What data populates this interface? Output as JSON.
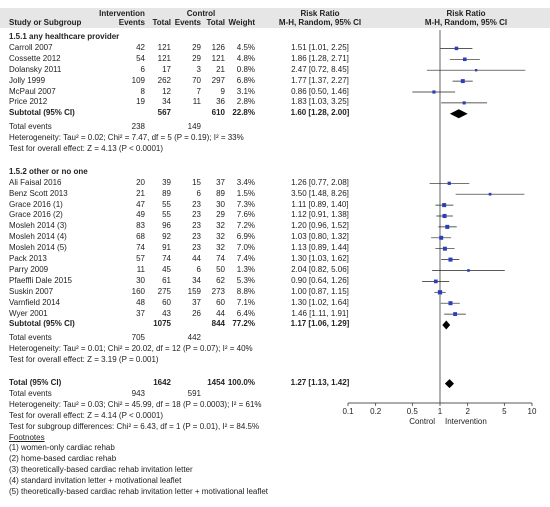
{
  "header": {
    "group_intervention": "Intervention",
    "group_control": "Control",
    "col_risk_ratio": "Risk Ratio",
    "col_study": "Study or Subgroup",
    "col_events1": "Events",
    "col_total1": "Total",
    "col_events2": "Events",
    "col_total2": "Total",
    "col_weight": "Weight",
    "col_method": "M-H, Random, 95% CI",
    "plot_title": "Risk Ratio",
    "plot_method": "M-H, Random, 95% CI"
  },
  "subgroups": [
    {
      "title": "1.5.1 any healthcare provider",
      "studies": [
        {
          "name": "Carroll 2007",
          "e1": "42",
          "n1": "121",
          "e2": "29",
          "n2": "126",
          "w": "4.5%",
          "ci": "1.51 [1.01, 2.25]"
        },
        {
          "name": "Cossette 2012",
          "e1": "54",
          "n1": "121",
          "e2": "29",
          "n2": "121",
          "w": "4.8%",
          "ci": "1.86 [1.28, 2.71]"
        },
        {
          "name": "Dolansky 2011",
          "e1": "6",
          "n1": "17",
          "e2": "3",
          "n2": "21",
          "w": "0.8%",
          "ci": "2.47 [0.72, 8.45]"
        },
        {
          "name": "Jolly 1999",
          "e1": "109",
          "n1": "262",
          "e2": "70",
          "n2": "297",
          "w": "6.8%",
          "ci": "1.77 [1.37, 2.27]"
        },
        {
          "name": "McPaul 2007",
          "e1": "8",
          "n1": "12",
          "e2": "7",
          "n2": "9",
          "w": "3.1%",
          "ci": "0.86 [0.50, 1.46]"
        },
        {
          "name": "Price 2012",
          "e1": "19",
          "n1": "34",
          "e2": "11",
          "n2": "36",
          "w": "2.8%",
          "ci": "1.83 [1.03, 3.25]"
        }
      ],
      "subtotal": {
        "label": "Subtotal (95% CI)",
        "n1": "567",
        "n2": "610",
        "w": "22.8%",
        "ci": "1.60 [1.28, 2.00]"
      },
      "total_events": {
        "label": "Total events",
        "e1": "238",
        "e2": "149"
      },
      "heterogeneity": "Heterogeneity: Tau² = 0.02; Chi² = 7.47, df = 5 (P = 0.19); I² = 33%",
      "overall": "Test for overall effect: Z = 4.13 (P < 0.0001)"
    },
    {
      "title": "1.5.2 other or no one",
      "studies": [
        {
          "name": "Ali Faisal 2016",
          "e1": "20",
          "n1": "39",
          "e2": "15",
          "n2": "37",
          "w": "3.4%",
          "ci": "1.26 [0.77, 2.08]"
        },
        {
          "name": "Benz Scott 2013",
          "e1": "21",
          "n1": "89",
          "e2": "6",
          "n2": "89",
          "w": "1.5%",
          "ci": "3.50 [1.48, 8.26]"
        },
        {
          "name": "Grace 2016 (1)",
          "e1": "47",
          "n1": "55",
          "e2": "23",
          "n2": "30",
          "w": "7.3%",
          "ci": "1.11 [0.89, 1.40]"
        },
        {
          "name": "Grace 2016 (2)",
          "e1": "49",
          "n1": "55",
          "e2": "23",
          "n2": "29",
          "w": "7.6%",
          "ci": "1.12 [0.91, 1.38]"
        },
        {
          "name": "Mosleh 2014 (3)",
          "e1": "83",
          "n1": "96",
          "e2": "23",
          "n2": "32",
          "w": "7.2%",
          "ci": "1.20 [0.96, 1.52]"
        },
        {
          "name": "Mosleh 2014 (4)",
          "e1": "68",
          "n1": "92",
          "e2": "23",
          "n2": "32",
          "w": "6.9%",
          "ci": "1.03 [0.80, 1.32]"
        },
        {
          "name": "Mosleh 2014 (5)",
          "e1": "74",
          "n1": "91",
          "e2": "23",
          "n2": "32",
          "w": "7.0%",
          "ci": "1.13 [0.89, 1.44]"
        },
        {
          "name": "Pack 2013",
          "e1": "57",
          "n1": "74",
          "e2": "44",
          "n2": "74",
          "w": "7.4%",
          "ci": "1.30 [1.03, 1.62]"
        },
        {
          "name": "Parry 2009",
          "e1": "11",
          "n1": "45",
          "e2": "6",
          "n2": "50",
          "w": "1.3%",
          "ci": "2.04 [0.82, 5.06]"
        },
        {
          "name": "Pfaeffli Dale 2015",
          "e1": "30",
          "n1": "61",
          "e2": "34",
          "n2": "62",
          "w": "5.3%",
          "ci": "0.90 [0.64, 1.26]"
        },
        {
          "name": "Suskin 2007",
          "e1": "160",
          "n1": "275",
          "e2": "159",
          "n2": "273",
          "w": "8.8%",
          "ci": "1.00 [0.87, 1.15]"
        },
        {
          "name": "Varnfield 2014",
          "e1": "48",
          "n1": "60",
          "e2": "37",
          "n2": "60",
          "w": "7.1%",
          "ci": "1.30 [1.02, 1.64]"
        },
        {
          "name": "Wyer 2001",
          "e1": "37",
          "n1": "43",
          "e2": "26",
          "n2": "44",
          "w": "6.4%",
          "ci": "1.46 [1.11, 1.91]"
        }
      ],
      "subtotal": {
        "label": "Subtotal (95% CI)",
        "n1": "1075",
        "n2": "844",
        "w": "77.2%",
        "ci": "1.17 [1.06, 1.29]"
      },
      "total_events": {
        "label": "Total events",
        "e1": "705",
        "e2": "442"
      },
      "heterogeneity": "Heterogeneity: Tau² = 0.01; Chi² = 20.02, df = 12 (P = 0.07); I² = 40%",
      "overall": "Test for overall effect: Z = 3.19 (P = 0.001)"
    }
  ],
  "total": {
    "label": "Total (95% CI)",
    "n1": "1642",
    "n2": "1454",
    "w": "100.0%",
    "ci": "1.27 [1.13, 1.42]",
    "events_label": "Total events",
    "e1": "943",
    "e2": "591",
    "heterogeneity": "Heterogeneity: Tau² = 0.03; Chi² = 45.99, df = 18 (P = 0.0003); I² = 61%",
    "overall": "Test for overall effect: Z = 4.14 (P < 0.0001)",
    "subgroup_diff": "Test for subgroup differences: Chi² = 6.43, df = 1 (P = 0.01), I² = 84.5%"
  },
  "footnotes": {
    "title": "Footnotes",
    "items": [
      "(1) women-only cardiac rehab",
      "(2) home-based cardiac rehab",
      "(3) theoretically-based cardiac rehab invitation letter",
      "(4) standard invitation letter + motivational leaflet",
      "(5) theoretically-based cardiac rehab invitation letter + motivational leaflet"
    ]
  },
  "axis": {
    "ticks": [
      0.1,
      0.2,
      0.5,
      1,
      2,
      5,
      10
    ],
    "tick_labels": [
      "0.1",
      "0.2",
      "0.5",
      "1",
      "2",
      "5",
      "10"
    ],
    "favours_left": "Control",
    "favours_right": "Intervention"
  },
  "colors": {
    "header_bg": "#e6e6e6",
    "square": "#2d3fb8",
    "line": "#222222",
    "diamond": "#000000"
  },
  "chart_data": {
    "type": "forest",
    "scale": "log",
    "xlim": [
      0.1,
      10
    ],
    "null_line": 1,
    "studies": [
      {
        "name": "Carroll 2007",
        "rr": 1.51,
        "lo": 1.01,
        "hi": 2.25,
        "weight": 4.5
      },
      {
        "name": "Cossette 2012",
        "rr": 1.86,
        "lo": 1.28,
        "hi": 2.71,
        "weight": 4.8
      },
      {
        "name": "Dolansky 2011",
        "rr": 2.47,
        "lo": 0.72,
        "hi": 8.45,
        "weight": 0.8
      },
      {
        "name": "Jolly 1999",
        "rr": 1.77,
        "lo": 1.37,
        "hi": 2.27,
        "weight": 6.8
      },
      {
        "name": "McPaul 2007",
        "rr": 0.86,
        "lo": 0.5,
        "hi": 1.46,
        "weight": 3.1
      },
      {
        "name": "Price 2012",
        "rr": 1.83,
        "lo": 1.03,
        "hi": 3.25,
        "weight": 2.8
      },
      {
        "name": "Subtotal 1.5.1",
        "rr": 1.6,
        "lo": 1.28,
        "hi": 2.0,
        "summary": true
      },
      {
        "name": "Ali Faisal 2016",
        "rr": 1.26,
        "lo": 0.77,
        "hi": 2.08,
        "weight": 3.4
      },
      {
        "name": "Benz Scott 2013",
        "rr": 3.5,
        "lo": 1.48,
        "hi": 8.26,
        "weight": 1.5
      },
      {
        "name": "Grace 2016 (1)",
        "rr": 1.11,
        "lo": 0.89,
        "hi": 1.4,
        "weight": 7.3
      },
      {
        "name": "Grace 2016 (2)",
        "rr": 1.12,
        "lo": 0.91,
        "hi": 1.38,
        "weight": 7.6
      },
      {
        "name": "Mosleh 2014 (3)",
        "rr": 1.2,
        "lo": 0.96,
        "hi": 1.52,
        "weight": 7.2
      },
      {
        "name": "Mosleh 2014 (4)",
        "rr": 1.03,
        "lo": 0.8,
        "hi": 1.32,
        "weight": 6.9
      },
      {
        "name": "Mosleh 2014 (5)",
        "rr": 1.13,
        "lo": 0.89,
        "hi": 1.44,
        "weight": 7.0
      },
      {
        "name": "Pack 2013",
        "rr": 1.3,
        "lo": 1.03,
        "hi": 1.62,
        "weight": 7.4
      },
      {
        "name": "Parry 2009",
        "rr": 2.04,
        "lo": 0.82,
        "hi": 5.06,
        "weight": 1.3
      },
      {
        "name": "Pfaeffli Dale 2015",
        "rr": 0.9,
        "lo": 0.64,
        "hi": 1.26,
        "weight": 5.3
      },
      {
        "name": "Suskin 2007",
        "rr": 1.0,
        "lo": 0.87,
        "hi": 1.15,
        "weight": 8.8
      },
      {
        "name": "Varnfield 2014",
        "rr": 1.3,
        "lo": 1.02,
        "hi": 1.64,
        "weight": 7.1
      },
      {
        "name": "Wyer 2001",
        "rr": 1.46,
        "lo": 1.11,
        "hi": 1.91,
        "weight": 6.4
      },
      {
        "name": "Subtotal 1.5.2",
        "rr": 1.17,
        "lo": 1.06,
        "hi": 1.29,
        "summary": true
      },
      {
        "name": "Total",
        "rr": 1.27,
        "lo": 1.13,
        "hi": 1.42,
        "summary": true
      }
    ]
  }
}
